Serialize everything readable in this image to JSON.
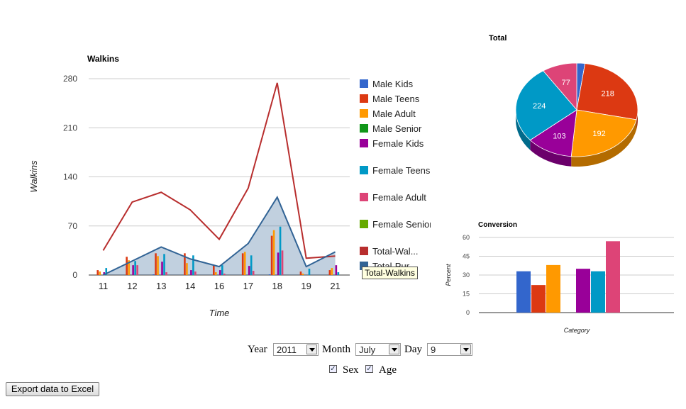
{
  "walkins_chart": {
    "title": "Walkins",
    "ylabel": "Walkins",
    "xlabel": "Time"
  },
  "legend": [
    {
      "label": "Male Kids",
      "color": "#3366cc"
    },
    {
      "label": "Male Teens",
      "color": "#dc3912"
    },
    {
      "label": "Male Adult",
      "color": "#ff9900"
    },
    {
      "label": "Male Senior",
      "color": "#109618"
    },
    {
      "label": "Female Kids",
      "color": "#990099"
    },
    {
      "label": "Female Teens",
      "color": "#0099c6"
    },
    {
      "label": "Female Adult",
      "color": "#dd4477"
    },
    {
      "label": "Female Senior",
      "color": "#66aa00"
    },
    {
      "label": "Total-Wal...",
      "color": "#b82e2e"
    },
    {
      "label": "Total-Pur...",
      "color": "#316395"
    }
  ],
  "tooltip": "Total-Walkins",
  "pie_chart": {
    "title": "Total"
  },
  "conversion_chart": {
    "title": "Conversion",
    "ylabel": "Percent",
    "xlabel": "Category"
  },
  "chart_data": [
    {
      "type": "bar",
      "title": "Walkins",
      "xlabel": "Time",
      "ylabel": "Walkins",
      "ylim": [
        0,
        280
      ],
      "yticks": [
        0,
        70,
        140,
        210,
        280
      ],
      "grid": true,
      "legend": "right",
      "categories": [
        "11",
        "12",
        "13",
        "14",
        "16",
        "17",
        "18",
        "19",
        "21"
      ],
      "series": [
        {
          "name": "Male Kids",
          "color": "#3366cc",
          "values": [
            0,
            0,
            1,
            0,
            0,
            0,
            1,
            0,
            0
          ]
        },
        {
          "name": "Male Teens",
          "color": "#dc3912",
          "values": [
            7,
            26,
            31,
            31,
            14,
            31,
            56,
            5,
            7
          ]
        },
        {
          "name": "Male Adult",
          "color": "#ff9900",
          "values": [
            5,
            21,
            27,
            17,
            4,
            33,
            64,
            2,
            10
          ]
        },
        {
          "name": "Male Senior",
          "color": "#109618",
          "values": [
            0,
            0,
            0,
            0,
            0,
            0,
            0,
            0,
            0
          ]
        },
        {
          "name": "Female Kids",
          "color": "#990099",
          "values": [
            4,
            14,
            19,
            7,
            7,
            13,
            32,
            0,
            14
          ]
        },
        {
          "name": "Female Teens",
          "color": "#0099c6",
          "values": [
            10,
            20,
            30,
            28,
            14,
            28,
            69,
            9,
            4
          ]
        },
        {
          "name": "Female Adult",
          "color": "#dd4477",
          "values": [
            0,
            14,
            4,
            5,
            2,
            6,
            35,
            0,
            0
          ]
        },
        {
          "name": "Female Senior",
          "color": "#66aa00",
          "values": [
            0,
            0,
            0,
            0,
            0,
            0,
            0,
            0,
            0
          ]
        }
      ],
      "lines": [
        {
          "name": "Total-Walkins",
          "color": "#b82e2e",
          "values": [
            35,
            104,
            118,
            93,
            51,
            124,
            274,
            24,
            27
          ]
        },
        {
          "name": "Total-Purchases",
          "color": "#316395",
          "area": true,
          "values": [
            0,
            20,
            40,
            23,
            12,
            45,
            111,
            12,
            33
          ]
        }
      ]
    },
    {
      "type": "pie",
      "title": "Total",
      "slices": [
        {
          "label": "Male Kids",
          "value": 18,
          "color": "#3366cc"
        },
        {
          "label": "Male Teens",
          "value": 218,
          "color": "#dc3912"
        },
        {
          "label": "Male Adult",
          "value": 192,
          "color": "#ff9900"
        },
        {
          "label": "Female Kids",
          "value": 103,
          "color": "#990099"
        },
        {
          "label": "Female Teens",
          "value": 224,
          "color": "#0099c6"
        },
        {
          "label": "Female Adult",
          "value": 77,
          "color": "#dd4477"
        }
      ],
      "shown_labels": [
        "218",
        "192",
        "103",
        "224",
        "77"
      ]
    },
    {
      "type": "bar",
      "title": "Conversion",
      "xlabel": "Category",
      "ylabel": "Percent",
      "ylim": [
        0,
        60
      ],
      "yticks": [
        0,
        15,
        30,
        45,
        60
      ],
      "series": [
        {
          "name": "Male Kids",
          "color": "#3366cc",
          "value": 33
        },
        {
          "name": "Male Teens",
          "color": "#dc3912",
          "value": 22
        },
        {
          "name": "Male Adult",
          "color": "#ff9900",
          "value": 38
        },
        {
          "name": "Male Senior",
          "color": "#109618",
          "value": 0
        },
        {
          "name": "Female Kids",
          "color": "#990099",
          "value": 35
        },
        {
          "name": "Female Teens",
          "color": "#0099c6",
          "value": 33
        },
        {
          "name": "Female Adult",
          "color": "#dd4477",
          "value": 57
        },
        {
          "name": "Female Senior",
          "color": "#66aa00",
          "value": 0
        }
      ]
    }
  ],
  "filters": {
    "year_label": "Year",
    "year_value": "2011",
    "month_label": "Month",
    "month_value": "July",
    "day_label": "Day",
    "day_value": "9",
    "sex_label": "Sex",
    "sex_checked": true,
    "age_label": "Age",
    "age_checked": true
  },
  "export_button": "Export data to Excel"
}
